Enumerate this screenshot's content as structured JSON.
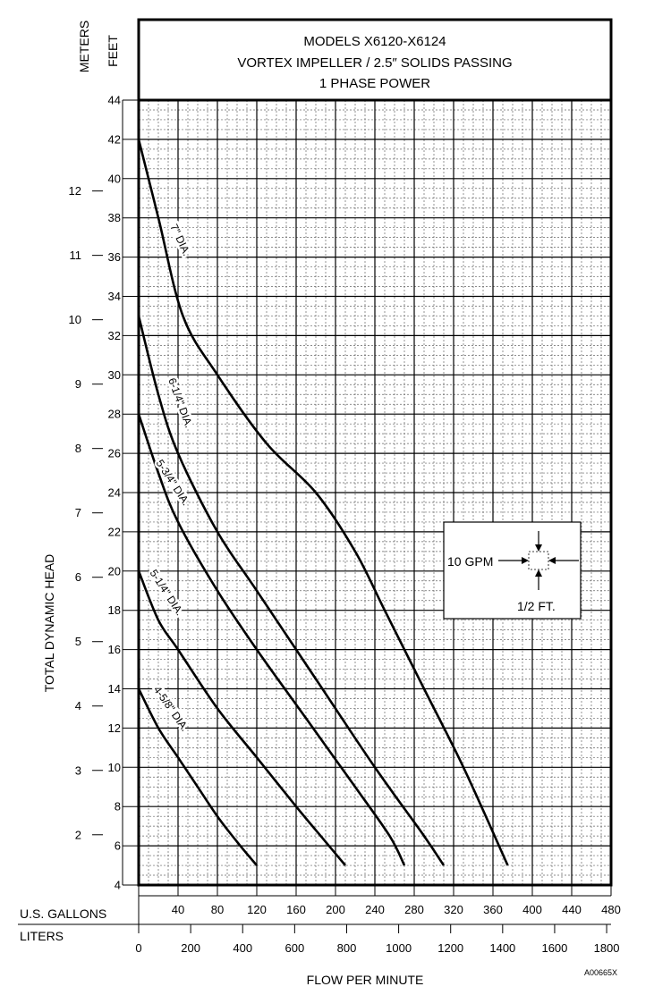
{
  "chart_data": {
    "type": "line",
    "title_lines": [
      "MODELS X6120-X6124",
      "VORTEX IMPELLER / 2.5″ SOLIDS PASSING",
      "1 PHASE POWER"
    ],
    "xlabel": "FLOW PER MINUTE",
    "ylabel": "TOTAL DYNAMIC HEAD",
    "x_axis_gallons_label": "U.S. GALLONS",
    "x_axis_liters_label": "LITERS",
    "y_axis_feet_label": "FEET",
    "y_axis_meters_label": "METERS",
    "xlim_gpm": [
      0,
      480
    ],
    "ylim_ft": [
      4,
      44
    ],
    "gallon_ticks": [
      "40",
      "80",
      "120",
      "160",
      "200",
      "240",
      "280",
      "320",
      "360",
      "400",
      "440",
      "480"
    ],
    "liter_ticks": [
      "0",
      "200",
      "400",
      "600",
      "800",
      "1000",
      "1200",
      "1400",
      "1600",
      "1800"
    ],
    "feet_ticks": [
      "4",
      "6",
      "8",
      "10",
      "12",
      "14",
      "16",
      "18",
      "20",
      "22",
      "24",
      "26",
      "28",
      "30",
      "32",
      "34",
      "36",
      "38",
      "40",
      "42",
      "44"
    ],
    "meter_ticks": [
      "2",
      "3",
      "4",
      "5",
      "6",
      "7",
      "8",
      "9",
      "10",
      "11",
      "12"
    ],
    "grid": true,
    "series": [
      {
        "name": "7\" DIA.",
        "x": [
          0,
          20,
          45,
          80,
          130,
          180,
          220,
          250,
          290,
          330,
          375
        ],
        "y": [
          42,
          38,
          33,
          30,
          26.5,
          24,
          21,
          18,
          14,
          10,
          5
        ]
      },
      {
        "name": "6-1/4\" DIA.",
        "x": [
          0,
          20,
          40,
          80,
          120,
          180,
          240,
          290,
          310
        ],
        "y": [
          33,
          29,
          26,
          22,
          19,
          14.5,
          10,
          6.5,
          5
        ]
      },
      {
        "name": "5-3/4\" DIA.",
        "x": [
          0,
          20,
          40,
          80,
          120,
          170,
          220,
          255,
          270
        ],
        "y": [
          28,
          25,
          22.5,
          19,
          16,
          12.5,
          9,
          6.5,
          5
        ]
      },
      {
        "name": "5-1/4\" DIA.",
        "x": [
          0,
          20,
          40,
          80,
          120,
          160,
          190,
          210
        ],
        "y": [
          20,
          17.5,
          16,
          13,
          10.5,
          8,
          6.2,
          5
        ]
      },
      {
        "name": "4-5/8\" DIA.",
        "x": [
          0,
          20,
          40,
          60,
          80,
          100,
          120
        ],
        "y": [
          14,
          12,
          10.5,
          9,
          7.5,
          6.2,
          5
        ]
      }
    ],
    "inset": {
      "flow_label": "10 GPM",
      "head_label": "1/2 FT."
    },
    "figure_code": "A00665X"
  }
}
